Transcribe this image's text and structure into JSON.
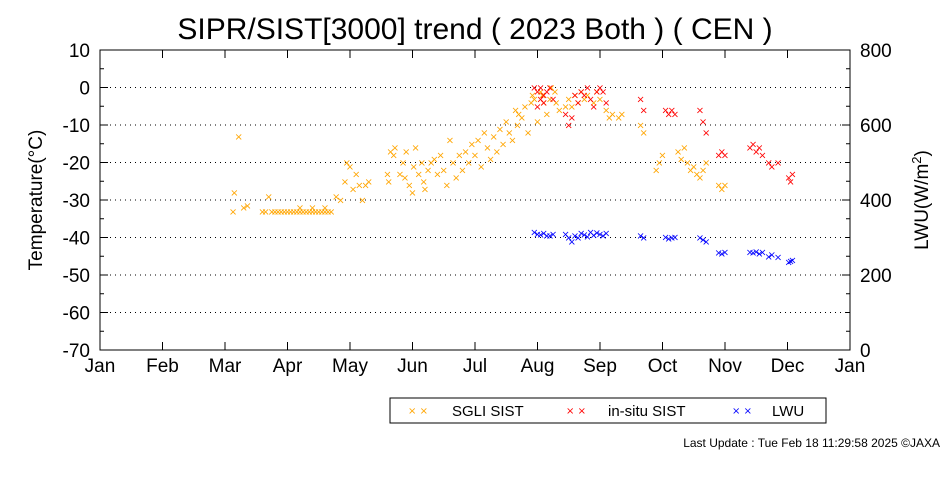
{
  "chart_data": {
    "type": "scatter",
    "title": "SIPR/SIST[3000] trend ( 2023 Both ) ( CEN )",
    "ylabel": "Temperature(°C)",
    "y2label_main": "LWU(W/m",
    "y2label_sup": "2",
    "y2label_end": ")",
    "ylim": [
      -70,
      10
    ],
    "y2lim": [
      0,
      800
    ],
    "xlim_month_index": [
      0,
      12
    ],
    "x_tick_labels": [
      "Jan",
      "Feb",
      "Mar",
      "Apr",
      "May",
      "Jun",
      "Jul",
      "Aug",
      "Sep",
      "Oct",
      "Nov",
      "Dec",
      "Jan"
    ],
    "y_tick_labels": [
      "10",
      "0",
      "-10",
      "-20",
      "-30",
      "-40",
      "-50",
      "-60",
      "-70"
    ],
    "y2_tick_labels": [
      "800",
      "600",
      "400",
      "200",
      "0"
    ],
    "grid": "dotted horizontal at major y ticks",
    "legend_position": "bottom",
    "x_unit": "month index (0 = Jan 1)",
    "series": [
      {
        "name": "SGLI SIST",
        "axis": "left",
        "color": "#ffa500",
        "marker": "x",
        "points": [
          [
            2.13,
            -33
          ],
          [
            2.15,
            -28
          ],
          [
            2.22,
            -13
          ],
          [
            2.3,
            -32
          ],
          [
            2.36,
            -31.5
          ],
          [
            2.6,
            -33
          ],
          [
            2.65,
            -33
          ],
          [
            2.7,
            -29
          ],
          [
            2.75,
            -33
          ],
          [
            2.8,
            -33
          ],
          [
            2.85,
            -33
          ],
          [
            2.9,
            -33
          ],
          [
            2.95,
            -33
          ],
          [
            3.0,
            -33
          ],
          [
            3.05,
            -33
          ],
          [
            3.1,
            -33
          ],
          [
            3.15,
            -33
          ],
          [
            3.2,
            -33
          ],
          [
            3.25,
            -33
          ],
          [
            3.3,
            -33
          ],
          [
            3.35,
            -33
          ],
          [
            3.4,
            -33
          ],
          [
            3.45,
            -33
          ],
          [
            3.5,
            -33
          ],
          [
            3.55,
            -33
          ],
          [
            3.6,
            -33
          ],
          [
            3.65,
            -33
          ],
          [
            3.7,
            -33
          ],
          [
            3.2,
            -32
          ],
          [
            3.4,
            -32
          ],
          [
            3.6,
            -32
          ],
          [
            3.78,
            -29
          ],
          [
            3.85,
            -30
          ],
          [
            3.92,
            -25
          ],
          [
            3.95,
            -20
          ],
          [
            4.0,
            -21
          ],
          [
            4.05,
            -27
          ],
          [
            4.1,
            -23
          ],
          [
            4.15,
            -26
          ],
          [
            4.2,
            -30
          ],
          [
            4.25,
            -26
          ],
          [
            4.3,
            -25
          ],
          [
            4.6,
            -23
          ],
          [
            4.62,
            -25
          ],
          [
            4.65,
            -17
          ],
          [
            4.7,
            -18
          ],
          [
            4.72,
            -16
          ],
          [
            4.8,
            -23
          ],
          [
            4.85,
            -20
          ],
          [
            4.88,
            -24
          ],
          [
            4.9,
            -17
          ],
          [
            4.95,
            -26
          ],
          [
            5.0,
            -28
          ],
          [
            5.02,
            -21
          ],
          [
            5.05,
            -16
          ],
          [
            5.1,
            -23
          ],
          [
            5.15,
            -20
          ],
          [
            5.18,
            -25
          ],
          [
            5.2,
            -27
          ],
          [
            5.25,
            -22
          ],
          [
            5.3,
            -20
          ],
          [
            5.35,
            -19
          ],
          [
            5.4,
            -23
          ],
          [
            5.45,
            -18
          ],
          [
            5.5,
            -22
          ],
          [
            5.55,
            -26
          ],
          [
            5.6,
            -14
          ],
          [
            5.65,
            -20
          ],
          [
            5.7,
            -24
          ],
          [
            5.75,
            -18
          ],
          [
            5.8,
            -22
          ],
          [
            5.85,
            -17
          ],
          [
            5.9,
            -20
          ],
          [
            5.95,
            -15
          ],
          [
            6.0,
            -18
          ],
          [
            6.05,
            -14
          ],
          [
            6.1,
            -21
          ],
          [
            6.15,
            -12
          ],
          [
            6.2,
            -16
          ],
          [
            6.25,
            -19
          ],
          [
            6.3,
            -13
          ],
          [
            6.35,
            -17
          ],
          [
            6.4,
            -11
          ],
          [
            6.45,
            -15
          ],
          [
            6.5,
            -9
          ],
          [
            6.55,
            -12
          ],
          [
            6.6,
            -14
          ],
          [
            6.65,
            -6
          ],
          [
            6.68,
            -10
          ],
          [
            6.7,
            -7
          ],
          [
            6.75,
            -8
          ],
          [
            6.8,
            -5
          ],
          [
            6.85,
            -12
          ],
          [
            6.9,
            -4
          ],
          [
            6.92,
            -2
          ],
          [
            6.95,
            -3
          ],
          [
            7.0,
            -9
          ],
          [
            7.05,
            -1
          ],
          [
            7.08,
            -2
          ],
          [
            7.1,
            -4
          ],
          [
            7.15,
            -7
          ],
          [
            7.2,
            -3
          ],
          [
            7.22,
            0
          ],
          [
            7.28,
            -1
          ],
          [
            7.3,
            -4
          ],
          [
            7.35,
            -6
          ],
          [
            7.45,
            -5
          ],
          [
            7.5,
            -3
          ],
          [
            7.55,
            -5
          ],
          [
            7.6,
            -2
          ],
          [
            7.65,
            -4
          ],
          [
            7.7,
            -1
          ],
          [
            7.75,
            -3
          ],
          [
            7.8,
            -2
          ],
          [
            7.9,
            -4
          ],
          [
            7.95,
            -1
          ],
          [
            8.0,
            -3
          ],
          [
            8.1,
            -6
          ],
          [
            8.15,
            -8
          ],
          [
            8.2,
            -7
          ],
          [
            8.3,
            -8
          ],
          [
            8.35,
            -7
          ],
          [
            8.65,
            -10
          ],
          [
            8.7,
            -12
          ],
          [
            8.9,
            -22
          ],
          [
            8.95,
            -20
          ],
          [
            9.0,
            -18
          ],
          [
            9.25,
            -17
          ],
          [
            9.3,
            -19
          ],
          [
            9.35,
            -16
          ],
          [
            9.4,
            -20
          ],
          [
            9.45,
            -22
          ],
          [
            9.5,
            -21
          ],
          [
            9.55,
            -23
          ],
          [
            9.6,
            -24
          ],
          [
            9.65,
            -22
          ],
          [
            9.7,
            -20
          ],
          [
            9.9,
            -26
          ],
          [
            9.95,
            -27
          ],
          [
            10.0,
            -26
          ]
        ]
      },
      {
        "name": "in-situ SIST",
        "axis": "left",
        "color": "#ff0000",
        "marker": "x",
        "points": [
          [
            6.95,
            0
          ],
          [
            7.0,
            -1
          ],
          [
            7.05,
            0
          ],
          [
            7.1,
            -2
          ],
          [
            7.15,
            -1
          ],
          [
            7.2,
            0
          ],
          [
            7.25,
            -3
          ],
          [
            7.0,
            -5
          ],
          [
            7.05,
            -3
          ],
          [
            7.1,
            -4
          ],
          [
            7.45,
            -7
          ],
          [
            7.5,
            -10
          ],
          [
            7.55,
            -8
          ],
          [
            7.6,
            -2
          ],
          [
            7.65,
            -4
          ],
          [
            7.7,
            -1
          ],
          [
            7.75,
            -2
          ],
          [
            7.8,
            0
          ],
          [
            7.85,
            -3
          ],
          [
            7.9,
            -5
          ],
          [
            7.95,
            -1
          ],
          [
            8.0,
            0
          ],
          [
            8.05,
            -1
          ],
          [
            8.1,
            -4
          ],
          [
            8.65,
            -3
          ],
          [
            8.7,
            -6
          ],
          [
            9.05,
            -6
          ],
          [
            9.1,
            -7
          ],
          [
            9.15,
            -6
          ],
          [
            9.2,
            -7
          ],
          [
            9.6,
            -6
          ],
          [
            9.65,
            -9
          ],
          [
            9.7,
            -12
          ],
          [
            9.9,
            -18
          ],
          [
            9.95,
            -17
          ],
          [
            10.0,
            -18
          ],
          [
            10.4,
            -16
          ],
          [
            10.45,
            -15
          ],
          [
            10.5,
            -17
          ],
          [
            10.55,
            -16
          ],
          [
            10.6,
            -18
          ],
          [
            10.7,
            -20
          ],
          [
            10.75,
            -21
          ],
          [
            10.85,
            -20
          ],
          [
            11.02,
            -24
          ],
          [
            11.05,
            -25
          ],
          [
            11.08,
            -23
          ]
        ]
      },
      {
        "name": "LWU",
        "axis": "right",
        "color": "#0000ff",
        "marker": "x",
        "points": [
          [
            6.95,
            315
          ],
          [
            7.0,
            310
          ],
          [
            7.05,
            308
          ],
          [
            7.1,
            312
          ],
          [
            7.15,
            306
          ],
          [
            7.2,
            305
          ],
          [
            7.25,
            310
          ],
          [
            7.45,
            310
          ],
          [
            7.5,
            300
          ],
          [
            7.55,
            290
          ],
          [
            7.6,
            305
          ],
          [
            7.65,
            300
          ],
          [
            7.7,
            312
          ],
          [
            7.75,
            308
          ],
          [
            7.8,
            303
          ],
          [
            7.85,
            315
          ],
          [
            7.9,
            307
          ],
          [
            7.95,
            313
          ],
          [
            8.0,
            310
          ],
          [
            8.05,
            305
          ],
          [
            8.1,
            312
          ],
          [
            8.65,
            305
          ],
          [
            8.7,
            300
          ],
          [
            9.05,
            302
          ],
          [
            9.1,
            298
          ],
          [
            9.15,
            300
          ],
          [
            9.2,
            302
          ],
          [
            9.6,
            300
          ],
          [
            9.65,
            295
          ],
          [
            9.7,
            290
          ],
          [
            9.9,
            260
          ],
          [
            9.95,
            258
          ],
          [
            10.0,
            262
          ],
          [
            10.4,
            262
          ],
          [
            10.45,
            260
          ],
          [
            10.5,
            263
          ],
          [
            10.55,
            258
          ],
          [
            10.6,
            262
          ],
          [
            10.7,
            250
          ],
          [
            10.75,
            255
          ],
          [
            10.85,
            248
          ],
          [
            11.02,
            235
          ],
          [
            11.05,
            238
          ],
          [
            11.08,
            240
          ]
        ]
      }
    ]
  },
  "legend": {
    "items": [
      {
        "label": "SGLI SIST",
        "color": "#ffa500"
      },
      {
        "label": "in-situ SIST",
        "color": "#ff0000"
      },
      {
        "label": "LWU",
        "color": "#0000ff"
      }
    ]
  },
  "footer": {
    "last_update": "Last Update : Tue Feb 18 11:29:58 2025  ©JAXA"
  }
}
